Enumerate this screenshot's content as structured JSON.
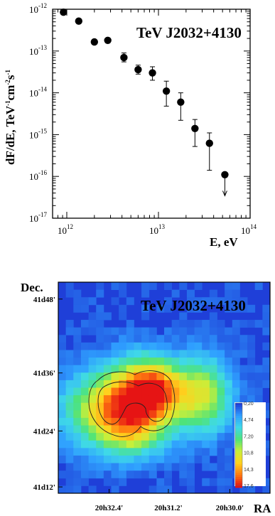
{
  "chart_data": [
    {
      "type": "scatter",
      "title": "TeV J2032+4130",
      "xlabel": "E, eV",
      "ylabel": "dF/dE, TeV-1cm-2s-1",
      "x_scale": "log",
      "y_scale": "log",
      "xlim": [
        700000000000.0,
        100000000000000.0
      ],
      "ylim": [
        1e-17,
        1e-12
      ],
      "x_ticks": [
        {
          "base": "10",
          "exp": "12"
        },
        {
          "base": "10",
          "exp": "13"
        },
        {
          "base": "10",
          "exp": "14"
        }
      ],
      "y_ticks": [
        {
          "base": "10",
          "exp": "-12"
        },
        {
          "base": "10",
          "exp": "-13"
        },
        {
          "base": "10",
          "exp": "-14"
        },
        {
          "base": "10",
          "exp": "-15"
        },
        {
          "base": "10",
          "exp": "-16"
        },
        {
          "base": "10",
          "exp": "-17"
        }
      ],
      "series": [
        {
          "points": [
            {
              "x": 920000000000.0,
              "y": 8.5e-13,
              "lo": null,
              "hi": null
            },
            {
              "x": 1350000000000.0,
              "y": 5.2e-13,
              "lo": null,
              "hi": null
            },
            {
              "x": 2000000000000.0,
              "y": 1.65e-13,
              "lo": null,
              "hi": null
            },
            {
              "x": 2800000000000.0,
              "y": 1.8e-13,
              "lo": null,
              "hi": null
            },
            {
              "x": 4200000000000.0,
              "y": 7e-14,
              "lo": 5.5e-14,
              "hi": 9e-14
            },
            {
              "x": 6000000000000.0,
              "y": 3.6e-14,
              "lo": 2.8e-14,
              "hi": 4.6e-14
            },
            {
              "x": 8600000000000.0,
              "y": 3e-14,
              "lo": 2e-14,
              "hi": 4.2e-14
            },
            {
              "x": 12200000000000.0,
              "y": 1.1e-14,
              "lo": 4.8e-15,
              "hi": 1.9e-14
            },
            {
              "x": 17500000000000.0,
              "y": 6e-15,
              "lo": 2.2e-15,
              "hi": 1e-14
            },
            {
              "x": 25000000000000.0,
              "y": 1.4e-15,
              "lo": 5.2e-16,
              "hi": 2.3e-15
            },
            {
              "x": 36000000000000.0,
              "y": 6.2e-16,
              "lo": 1.4e-16,
              "hi": 1.1e-15
            },
            {
              "x": 53000000000000.0,
              "y": 1.1e-16,
              "upper_limit": true
            }
          ]
        }
      ]
    },
    {
      "type": "heatmap",
      "title": "TeV J2032+4130",
      "xlabel": "RA",
      "ylabel": "Dec.",
      "x_ticks": [
        "20h32.4'",
        "20h31.2'",
        "20h30.0'"
      ],
      "y_ticks": [
        "41d48'",
        "41d36'",
        "41d24'",
        "41d12'"
      ],
      "colorbar": {
        "labels": [
          "0,20",
          "4,74",
          "7,20",
          "10,8",
          "14,3",
          "17,6"
        ],
        "range": [
          0.2,
          17.6
        ],
        "colors": [
          "#1f3fd8",
          "#2f9fff",
          "#3fd9e8",
          "#4ee37a",
          "#c8ef3a",
          "#ffd21e",
          "#ff7a10",
          "#e61414"
        ]
      },
      "background_color": "#1f3fd8",
      "sources": [
        {
          "ra_index": 0.77,
          "dec_index": 0.41,
          "sigma_ra": 0.16,
          "sigma_dec": 0.12,
          "amp": 10.5
        },
        {
          "ra_index": 0.63,
          "dec_index": 0.33,
          "sigma_ra": 0.12,
          "sigma_dec": 0.12,
          "amp": 9.0
        },
        {
          "ra_index": 0.55,
          "dec_index": 0.31,
          "sigma_ra": 0.09,
          "sigma_dec": 0.09,
          "amp": 8.5
        },
        {
          "ra_index": 0.33,
          "dec_index": 0.34,
          "sigma_ra": 0.09,
          "sigma_dec": 0.12,
          "amp": 9.5
        },
        {
          "ra_index": 0.67,
          "dec_index": 0.53,
          "sigma_ra": 0.11,
          "sigma_dec": 0.08,
          "amp": 4.5
        }
      ]
    }
  ]
}
